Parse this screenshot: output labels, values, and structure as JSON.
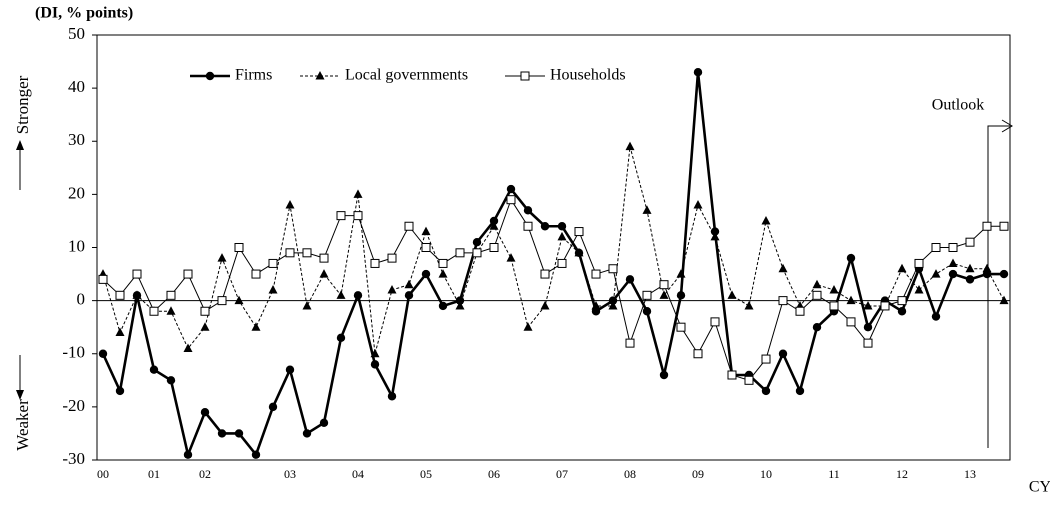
{
  "chart_data": {
    "type": "line",
    "title": "(DI, % points)",
    "categories": [
      "00",
      null,
      null,
      "01",
      null,
      null,
      "02",
      null,
      null,
      null,
      null,
      "03",
      null,
      null,
      null,
      "04",
      null,
      null,
      null,
      "05",
      null,
      null,
      null,
      "06",
      null,
      null,
      null,
      "07",
      null,
      null,
      null,
      "08",
      null,
      null,
      null,
      "09",
      null,
      null,
      null,
      "10",
      null,
      null,
      null,
      "11",
      null,
      null,
      null,
      "12",
      null,
      null,
      null,
      "13",
      null,
      null
    ],
    "series": [
      {
        "name": "Firms",
        "color": "#000000",
        "marker": "circle",
        "dash": "solid",
        "values": [
          -10,
          -17,
          1,
          -13,
          -15,
          -29,
          -21,
          -25,
          -25,
          -29,
          -20,
          -13,
          -25,
          -23,
          -7,
          1,
          -12,
          -18,
          1,
          5,
          -1,
          0,
          11,
          15,
          21,
          17,
          14,
          14,
          9,
          -2,
          0,
          4,
          -2,
          -14,
          1,
          43,
          13,
          -14,
          -14,
          -17,
          -10,
          -17,
          -5,
          -2,
          8,
          -5,
          0,
          -2,
          6,
          -3,
          5,
          4,
          5,
          5
        ]
      },
      {
        "name": "Local governments",
        "color": "#000000",
        "marker": "triangle",
        "dash": "dashed",
        "values": [
          5,
          -6,
          1,
          -2,
          -2,
          -9,
          -5,
          8,
          0,
          -5,
          2,
          18,
          -1,
          5,
          1,
          20,
          -10,
          2,
          3,
          13,
          5,
          -1,
          9,
          14,
          8,
          -5,
          -1,
          12,
          9,
          -1,
          -1,
          29,
          17,
          1,
          5,
          18,
          12,
          1,
          -1,
          15,
          6,
          -1,
          3,
          2,
          0,
          -1,
          -1,
          6,
          2,
          5,
          7,
          6,
          6,
          0
        ]
      },
      {
        "name": "Households",
        "color": "#000000",
        "marker": "square",
        "dash": "solid",
        "values": [
          4,
          1,
          5,
          -2,
          1,
          5,
          -2,
          0,
          10,
          5,
          7,
          9,
          9,
          8,
          16,
          16,
          7,
          8,
          14,
          10,
          7,
          9,
          9,
          10,
          19,
          14,
          5,
          7,
          13,
          5,
          6,
          -8,
          1,
          3,
          -5,
          -10,
          -4,
          -14,
          -15,
          -11,
          0,
          -2,
          1,
          -1,
          -4,
          -8,
          -1,
          0,
          7,
          10,
          10,
          11,
          14,
          14
        ]
      }
    ],
    "ylim": [
      -30,
      50
    ],
    "yticks": [
      -30,
      -20,
      -10,
      0,
      10,
      20,
      30,
      40,
      50
    ],
    "up_label": "Stronger",
    "down_label": "Weaker",
    "outlook_label": "Outlook",
    "x_unit": "CY"
  }
}
